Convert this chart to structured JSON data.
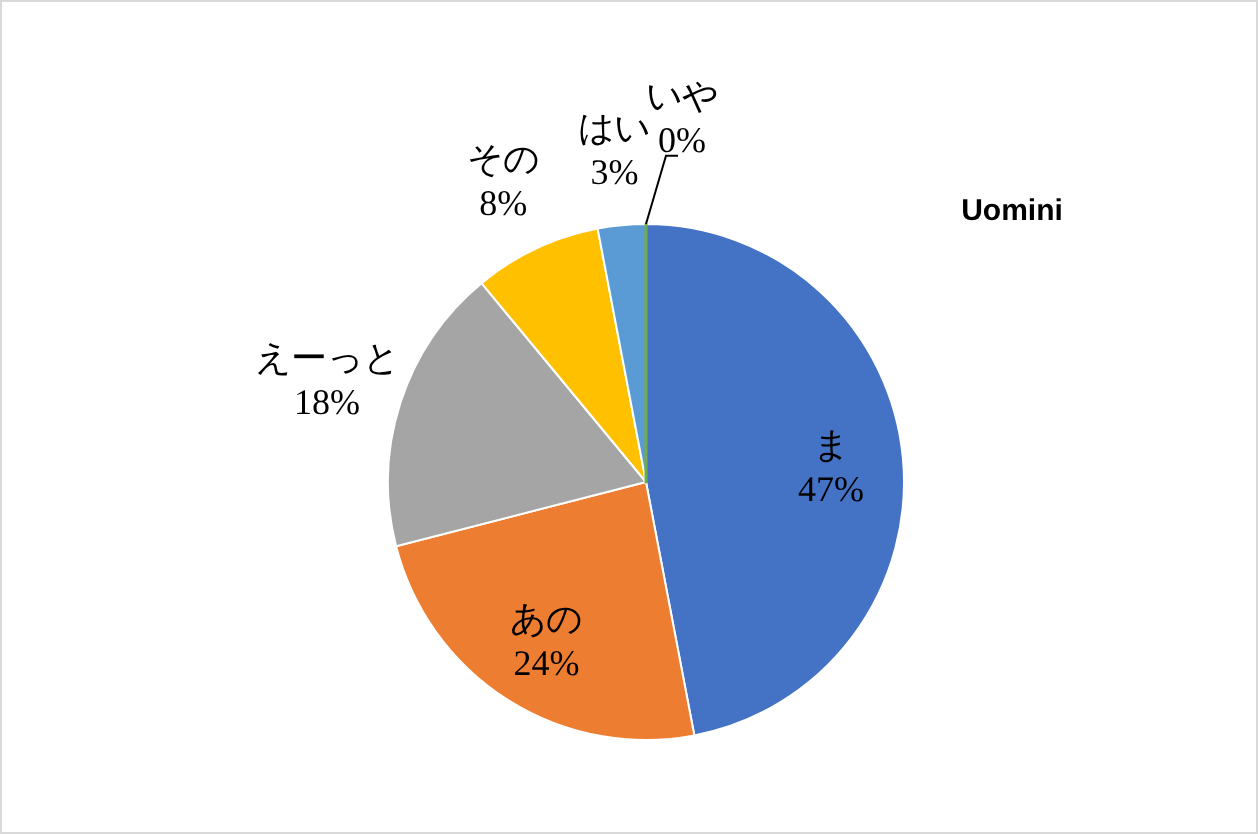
{
  "chart_data": {
    "type": "pie",
    "title": "Uomini",
    "categories": [
      "ま",
      "あの",
      "えーっと",
      "その",
      "はい",
      "いや"
    ],
    "values": [
      47,
      24,
      18,
      8,
      3,
      0
    ],
    "value_labels": [
      "47%",
      "24%",
      "18%",
      "8%",
      "3%",
      "0%"
    ],
    "colors": [
      "#4472c4",
      "#ed7d31",
      "#a5a5a5",
      "#ffc000",
      "#5b9bd5",
      "#70ad47"
    ]
  }
}
